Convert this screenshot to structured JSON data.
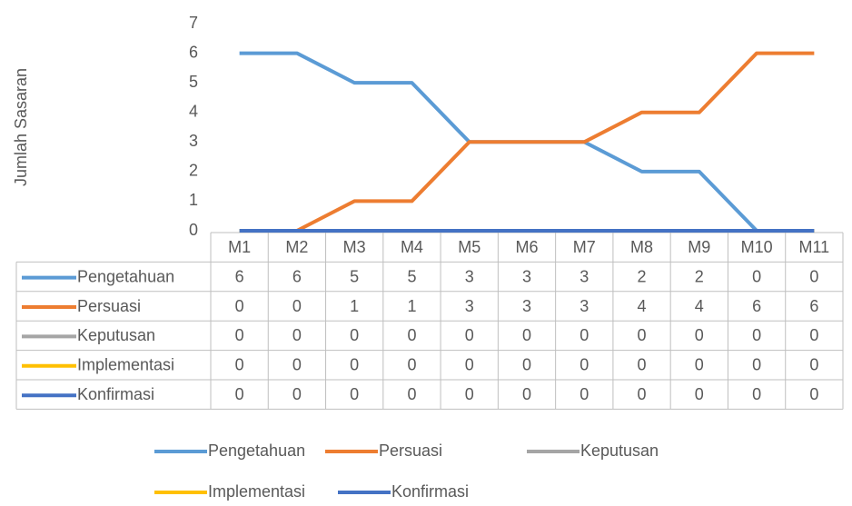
{
  "chart_data": {
    "type": "line",
    "y_label": "Jumlah Sasaran",
    "categories": [
      "M1",
      "M2",
      "M3",
      "M4",
      "M5",
      "M6",
      "M7",
      "M8",
      "M9",
      "M10",
      "M11"
    ],
    "series": [
      {
        "name": "Pengetahuan",
        "color": "#5b9bd5",
        "values": [
          6,
          6,
          5,
          5,
          3,
          3,
          3,
          2,
          2,
          0,
          0
        ]
      },
      {
        "name": "Persuasi",
        "color": "#ed7d31",
        "values": [
          0,
          0,
          1,
          1,
          3,
          3,
          3,
          4,
          4,
          6,
          6
        ]
      },
      {
        "name": "Keputusan",
        "color": "#a5a5a5",
        "values": [
          0,
          0,
          0,
          0,
          0,
          0,
          0,
          0,
          0,
          0,
          0
        ]
      },
      {
        "name": "Implementasi",
        "color": "#ffc000",
        "values": [
          0,
          0,
          0,
          0,
          0,
          0,
          0,
          0,
          0,
          0,
          0
        ]
      },
      {
        "name": "Konfirmasi",
        "color": "#4472c4",
        "values": [
          0,
          0,
          0,
          0,
          0,
          0,
          0,
          0,
          0,
          0,
          0
        ]
      }
    ],
    "ylim": [
      0,
      7
    ],
    "yticks": [
      0,
      1,
      2,
      3,
      4,
      5,
      6,
      7
    ],
    "grid": false,
    "legend": "bottom",
    "data_table": true
  }
}
